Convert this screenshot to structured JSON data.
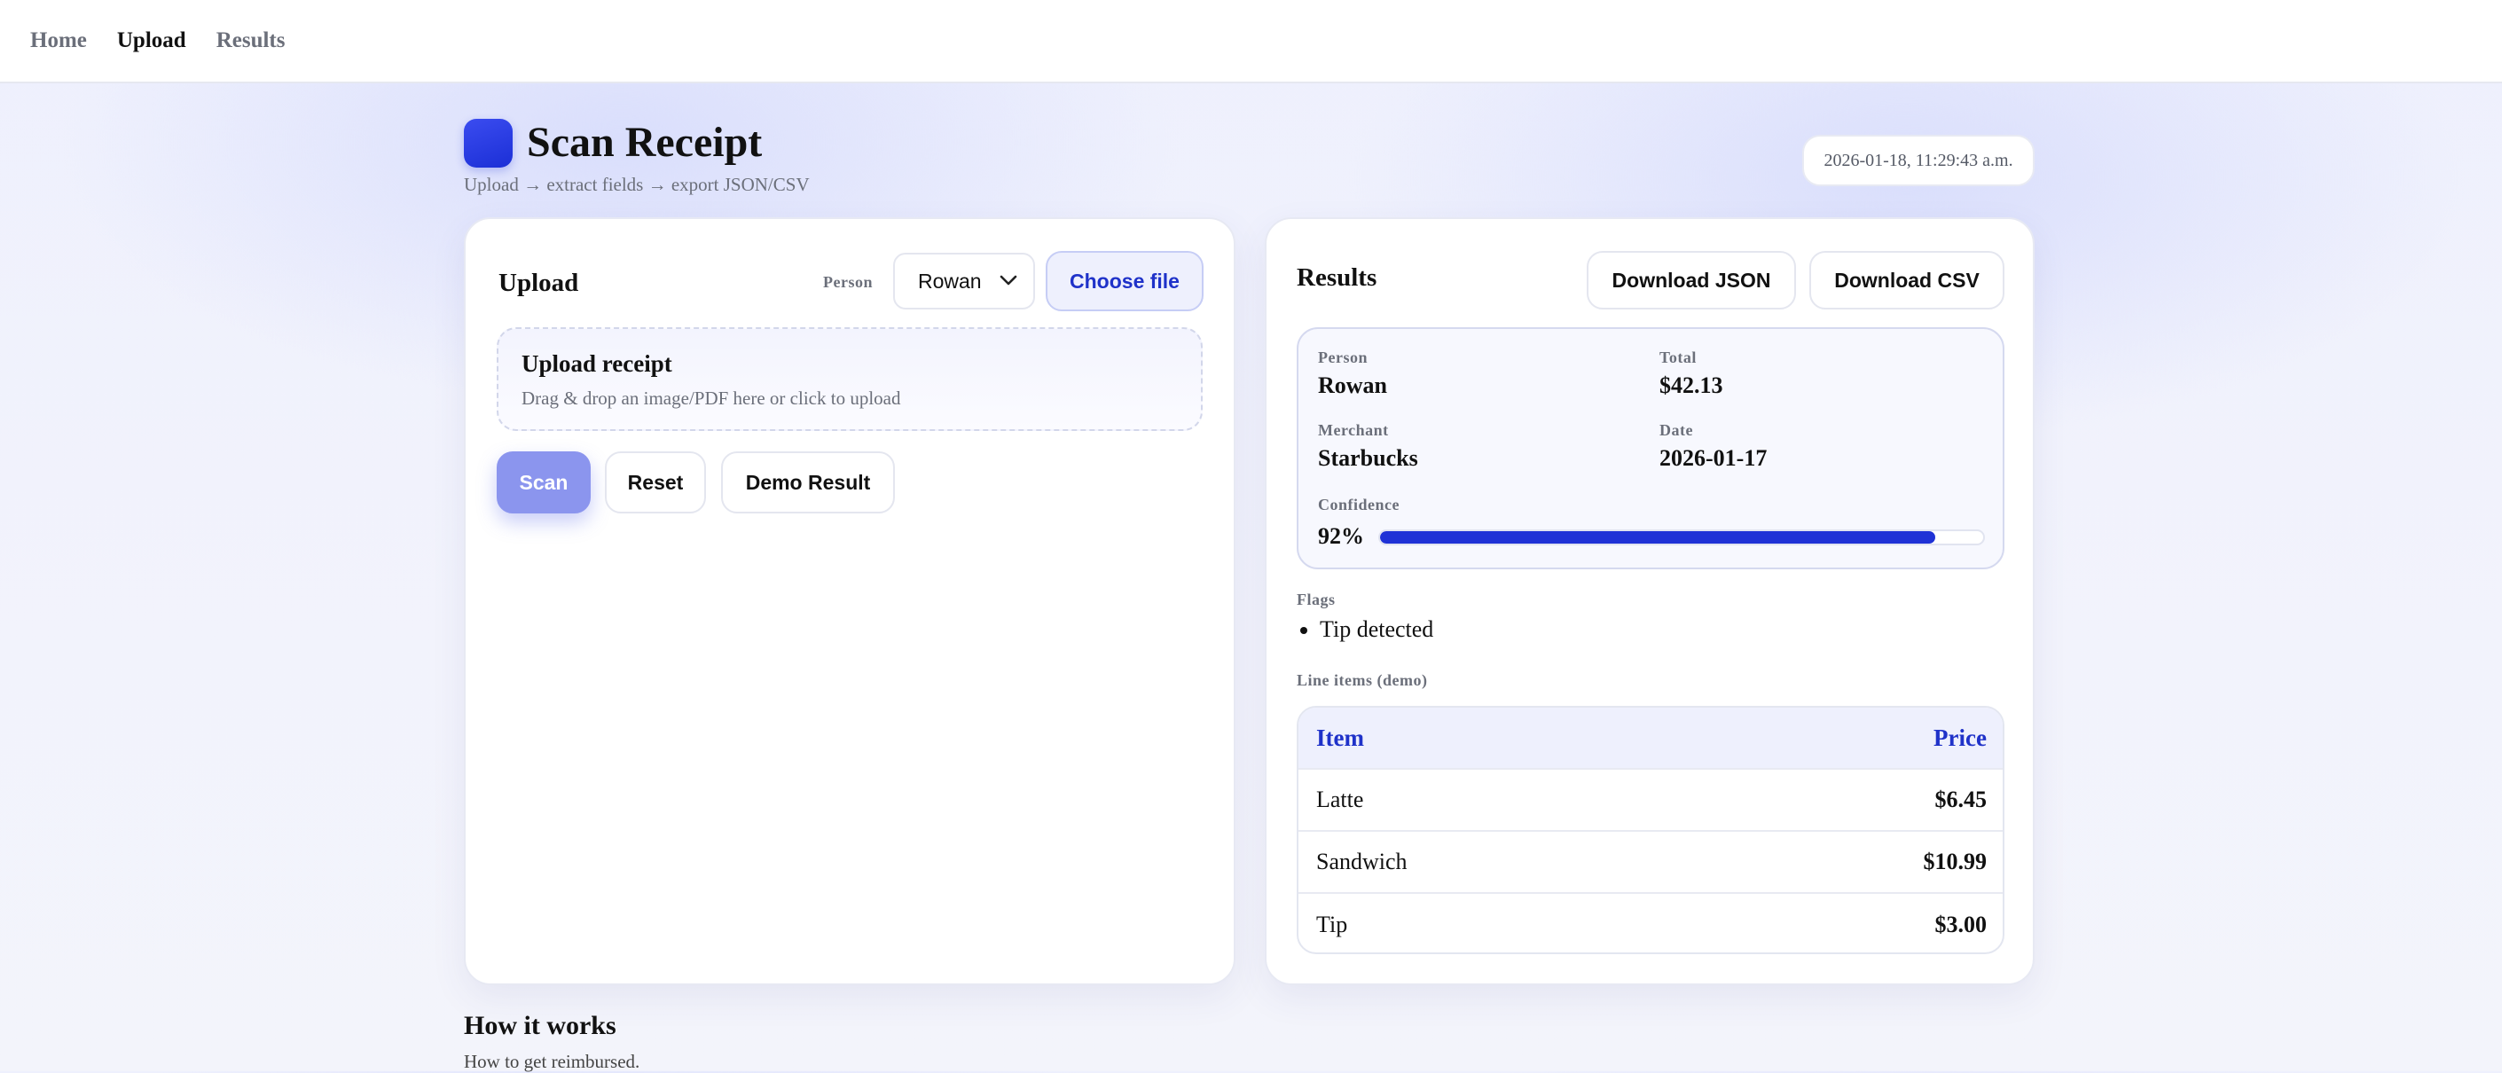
{
  "nav": {
    "items": [
      {
        "label": "Home"
      },
      {
        "label": "Upload"
      },
      {
        "label": "Results"
      }
    ],
    "active": "Upload"
  },
  "header": {
    "title": "Scan Receipt",
    "subtitle": "Upload → extract fields → export JSON/CSV",
    "timestamp": "2026-01-18, 11:29:43 a.m."
  },
  "upload": {
    "heading": "Upload",
    "person_label": "Person",
    "person_value": "Rowan",
    "choose_file_label": "Choose file",
    "dropzone_title": "Upload receipt",
    "dropzone_text": "Drag & drop an image/PDF here or click to upload",
    "scan_label": "Scan",
    "reset_label": "Reset",
    "demo_label": "Demo Result"
  },
  "results": {
    "heading": "Results",
    "download_json_label": "Download JSON",
    "download_csv_label": "Download CSV",
    "summary": {
      "person_label": "Person",
      "person": "Rowan",
      "total_label": "Total",
      "total": "$42.13",
      "merchant_label": "Merchant",
      "merchant": "Starbucks",
      "date_label": "Date",
      "date": "2026-01-17",
      "confidence_label": "Confidence",
      "confidence_text": "92%",
      "confidence": 0.92
    },
    "flags_label": "Flags",
    "flags": [
      "Tip detected"
    ],
    "line_items_label": "Line items (demo)",
    "table": {
      "col_item": "Item",
      "col_price": "Price",
      "rows": [
        {
          "item": "Latte",
          "price": "$6.45"
        },
        {
          "item": "Sandwich",
          "price": "$10.99"
        },
        {
          "item": "Tip",
          "price": "$3.00"
        }
      ]
    }
  },
  "how": {
    "title": "How it works",
    "subtitle": "How to get reimbursed."
  },
  "colors": {
    "accent": "#1f32d6",
    "primary_button": "#8b95ee",
    "muted_text": "#6b6f7a"
  }
}
